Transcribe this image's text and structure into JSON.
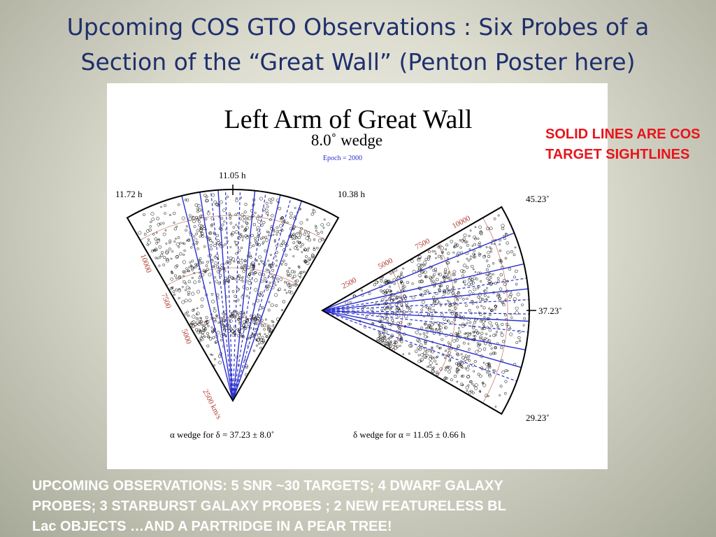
{
  "slide": {
    "title_line1": "Upcoming COS GTO Observations : Six Probes of a",
    "title_line2": "Section of the “Great Wall” (Penton Poster here)",
    "annotation": "SOLID LINES ARE COS TARGET SIGHTLINES",
    "bottom_note_line1": "UPCOMING OBSERVATIONS:  5 SNR ~30 TARGETS; 4 DWARF GALAXY",
    "bottom_note_line2": "PROBES; 3  STARBURST GALAXY PROBES ;  2 NEW FEATURELESS BL",
    "bottom_note_line3": "Lac OBJECTS  …AND A PARTRIDGE IN A PEAR TREE!"
  },
  "figure": {
    "title": "Left Arm of Great Wall",
    "subtitle": "8.0˚ wedge",
    "epoch": "Epoch = 2000",
    "left_wedge": {
      "ra_labels": [
        "11.72 h",
        "11.05 h",
        "10.38 h"
      ],
      "velocity_labels": [
        "2500 km/s",
        "5000",
        "7500",
        "10000"
      ],
      "caption": "α wedge for δ =  37.23 ± 8.0˚"
    },
    "right_wedge": {
      "dec_labels": [
        "45.23˚",
        "37.23˚",
        "29.23˚"
      ],
      "velocity_labels": [
        "2500",
        "5000",
        "7500",
        "10000"
      ],
      "caption": "δ wedge for α =  11.05 ± 0.66 h"
    },
    "colors": {
      "solid_sightline": "#2b2fd0",
      "dashed_sightline": "#2b2fd0",
      "velocity_arc": "#c8826f",
      "wedge_outline": "#000000",
      "galaxy_point": "#000000"
    }
  }
}
